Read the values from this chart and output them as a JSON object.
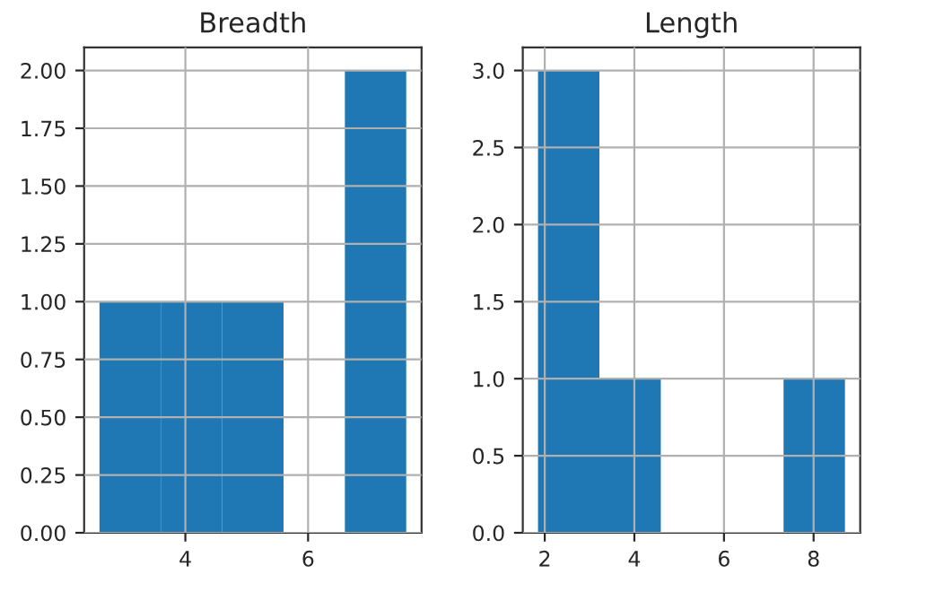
{
  "chart_data": [
    {
      "type": "histogram",
      "title": "Breadth",
      "bins": [
        2.6,
        3.6,
        4.6,
        5.6,
        6.6,
        7.6
      ],
      "values": [
        1,
        1,
        1,
        0,
        2
      ],
      "color": "#1f77b4",
      "xlim": [
        2.35,
        7.85
      ],
      "xticks": [
        4,
        6
      ],
      "ylim": [
        0,
        2.1
      ],
      "yticks": [
        {
          "value": 0,
          "label": "0.00"
        },
        {
          "value": 0.25,
          "label": "0.25"
        },
        {
          "value": 0.5,
          "label": "0.50"
        },
        {
          "value": 0.75,
          "label": "0.75"
        },
        {
          "value": 1,
          "label": "1.00"
        },
        {
          "value": 1.25,
          "label": "1.25"
        },
        {
          "value": 1.5,
          "label": "1.50"
        },
        {
          "value": 1.75,
          "label": "1.75"
        },
        {
          "value": 2,
          "label": "2.00"
        }
      ],
      "grid": true
    },
    {
      "type": "histogram",
      "title": "Length",
      "bins": [
        1.85,
        3.22,
        4.59,
        5.96,
        7.33,
        8.7
      ],
      "values": [
        3,
        1,
        0,
        0,
        1
      ],
      "color": "#1f77b4",
      "xlim": [
        1.51,
        9.04
      ],
      "xticks": [
        2,
        4,
        6,
        8
      ],
      "ylim": [
        0,
        3.15
      ],
      "yticks": [
        {
          "value": 0,
          "label": "0.0"
        },
        {
          "value": 0.5,
          "label": "0.5"
        },
        {
          "value": 1,
          "label": "1.0"
        },
        {
          "value": 1.5,
          "label": "1.5"
        },
        {
          "value": 2,
          "label": "2.0"
        },
        {
          "value": 2.5,
          "label": "2.5"
        },
        {
          "value": 3,
          "label": "3.0"
        }
      ],
      "grid": true
    }
  ]
}
